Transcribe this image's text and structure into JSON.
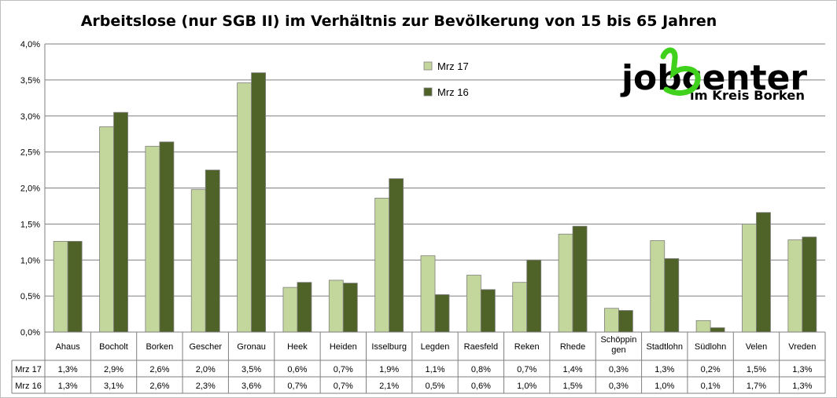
{
  "chart_data": {
    "type": "bar",
    "title": "Arbeitslose (nur SGB II) im Verhältnis zur Bevölkerung von 15 bis 65 Jahren",
    "categories": [
      "Ahaus",
      "Bocholt",
      "Borken",
      "Gescher",
      "Gronau",
      "Heek",
      "Heiden",
      "Isselburg",
      "Legden",
      "Raesfeld",
      "Reken",
      "Rhede",
      "Schöppin gen",
      "Stadtlohn",
      "Südlohn",
      "Velen",
      "Vreden"
    ],
    "category_lines": [
      [
        "Ahaus"
      ],
      [
        "Bocholt"
      ],
      [
        "Borken"
      ],
      [
        "Gescher"
      ],
      [
        "Gronau"
      ],
      [
        "Heek"
      ],
      [
        "Heiden"
      ],
      [
        "Isselburg"
      ],
      [
        "Legden"
      ],
      [
        "Raesfeld"
      ],
      [
        "Reken"
      ],
      [
        "Rhede"
      ],
      [
        "Schöppin",
        "gen"
      ],
      [
        "Stadtlohn"
      ],
      [
        "Südlohn"
      ],
      [
        "Velen"
      ],
      [
        "Vreden"
      ]
    ],
    "series": [
      {
        "name": "Mrz 17",
        "color": "#c3d69b",
        "values": [
          0.0126,
          0.0285,
          0.0258,
          0.0198,
          0.0346,
          0.0062,
          0.0072,
          0.0186,
          0.0106,
          0.0079,
          0.0069,
          0.0136,
          0.0033,
          0.0127,
          0.0016,
          0.015,
          0.0128
        ],
        "labels": [
          "1,3%",
          "2,9%",
          "2,6%",
          "2,0%",
          "3,5%",
          "0,6%",
          "0,7%",
          "1,9%",
          "1,1%",
          "0,8%",
          "0,7%",
          "1,4%",
          "0,3%",
          "1,3%",
          "0,2%",
          "1,5%",
          "1,3%"
        ]
      },
      {
        "name": "Mrz 16",
        "color": "#4f6228",
        "values": [
          0.0126,
          0.0305,
          0.0264,
          0.0225,
          0.036,
          0.0069,
          0.0068,
          0.0213,
          0.0052,
          0.0059,
          0.01,
          0.0147,
          0.003,
          0.0102,
          0.0006,
          0.0166,
          0.0132
        ],
        "labels": [
          "1,3%",
          "3,1%",
          "2,6%",
          "2,3%",
          "3,6%",
          "0,7%",
          "0,7%",
          "2,1%",
          "0,5%",
          "0,6%",
          "1,0%",
          "1,5%",
          "0,3%",
          "1,0%",
          "0,1%",
          "1,7%",
          "1,3%"
        ]
      }
    ],
    "ylim": [
      0,
      0.04
    ],
    "yticks": [
      0,
      0.005,
      0.01,
      0.015,
      0.02,
      0.025,
      0.03,
      0.035,
      0.04
    ],
    "ytick_labels": [
      "0,0%",
      "0,5%",
      "1,0%",
      "1,5%",
      "2,0%",
      "2,5%",
      "3,0%",
      "3,5%",
      "4,0%"
    ],
    "grid": true,
    "legend_position": "top-center",
    "data_table": true
  },
  "logo": {
    "line1": "jobcenter",
    "line2": "im Kreis Borken",
    "accent_color": "#3fd11b"
  },
  "colors": {
    "gridline": "#7f7f7f",
    "axis": "#7f7f7f",
    "bar_border": "#7f7f7f"
  }
}
